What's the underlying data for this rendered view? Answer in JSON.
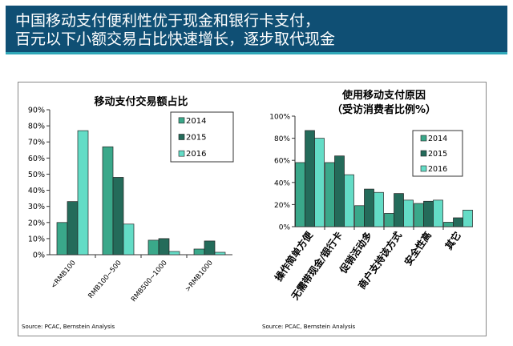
{
  "header": {
    "line1": "中国移动支付便利性优于现金和银行卡支付，",
    "line2": "百元以下小额交易占比快速增长，逐步取代现金",
    "background": "#0f4f74"
  },
  "colors": {
    "2014": "#3aa88a",
    "2015": "#246b5a",
    "2016": "#63dcc6"
  },
  "chart_data": [
    {
      "type": "bar",
      "title": "移动支付交易额占比",
      "categories": [
        "<RMB100",
        "RMB100~500",
        "RMB500~1000",
        ">RMB1000"
      ],
      "series": [
        {
          "name": "2014",
          "values": [
            20,
            67,
            9,
            3.5
          ]
        },
        {
          "name": "2015",
          "values": [
            33,
            48,
            10,
            8.5
          ]
        },
        {
          "name": "2016",
          "values": [
            77,
            19,
            2,
            1.5
          ]
        }
      ],
      "yticks": [
        "0%",
        "10%",
        "20%",
        "30%",
        "40%",
        "50%",
        "60%",
        "70%",
        "80%",
        "90%"
      ],
      "ylim": [
        0,
        90
      ],
      "legend": "top-right",
      "source": "Source: PCAC, Bernstein Analysis"
    },
    {
      "type": "bar",
      "title": "使用移动支付原因",
      "subtitle": "（受访消费者比例%）",
      "categories": [
        "操作简单方便",
        "无需带现金/银行卡",
        "促销活动多",
        "商户支持该方式",
        "安全性高",
        "其它"
      ],
      "series": [
        {
          "name": "2014",
          "values": [
            58,
            58,
            19,
            12,
            21,
            4
          ]
        },
        {
          "name": "2015",
          "values": [
            87,
            64,
            34,
            30,
            23,
            8
          ]
        },
        {
          "name": "2016",
          "values": [
            80,
            47,
            31,
            24,
            24,
            15
          ]
        }
      ],
      "yticks": [
        "0%",
        "20%",
        "40%",
        "60%",
        "80%",
        "100%"
      ],
      "ylim": [
        0,
        100
      ],
      "legend": "top-right",
      "source": "Source: PCAC, Bernstein Analysis"
    }
  ]
}
